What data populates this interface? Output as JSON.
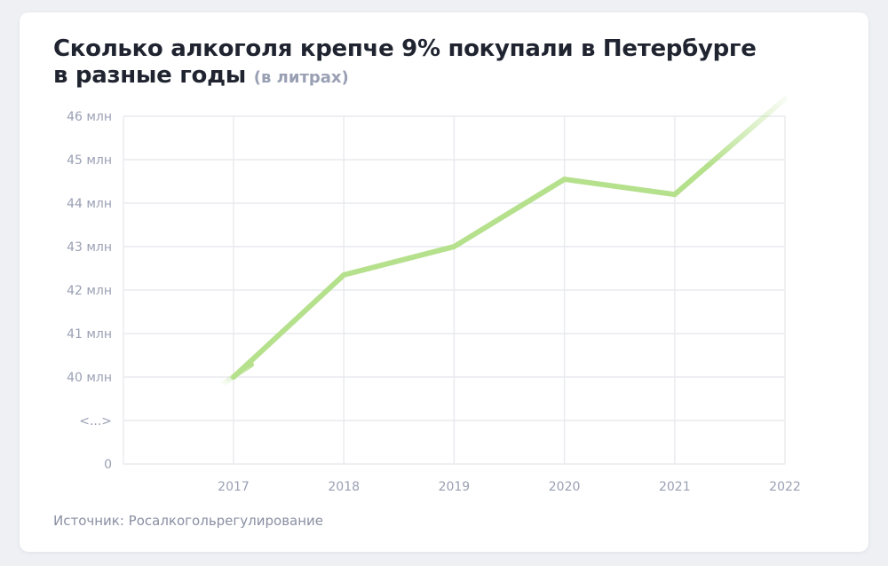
{
  "title": {
    "line1": "Сколько алкоголя крепче 9% покупали в Петербурге",
    "line2": "в разные годы",
    "unit": "(в литрах)"
  },
  "source": "Источник: Росалкогольрегулирование",
  "colors": {
    "line": "#b5e08c",
    "grid": "#e9eaee",
    "tick_text": "#9aa0b4"
  },
  "chart_data": {
    "type": "line",
    "x": [
      "2017",
      "2018",
      "2019",
      "2020",
      "2021",
      "2022"
    ],
    "values": [
      40.0,
      42.35,
      43.0,
      44.55,
      44.2,
      46.4
    ],
    "y_tick_labels": [
      "0",
      "<...>",
      "40 млн",
      "41 млн",
      "42 млн",
      "43 млн",
      "44 млн",
      "45 млн",
      "46 млн"
    ],
    "ylim": [
      40,
      46
    ],
    "y_axis_break": true,
    "grid": true,
    "legend": "none"
  }
}
